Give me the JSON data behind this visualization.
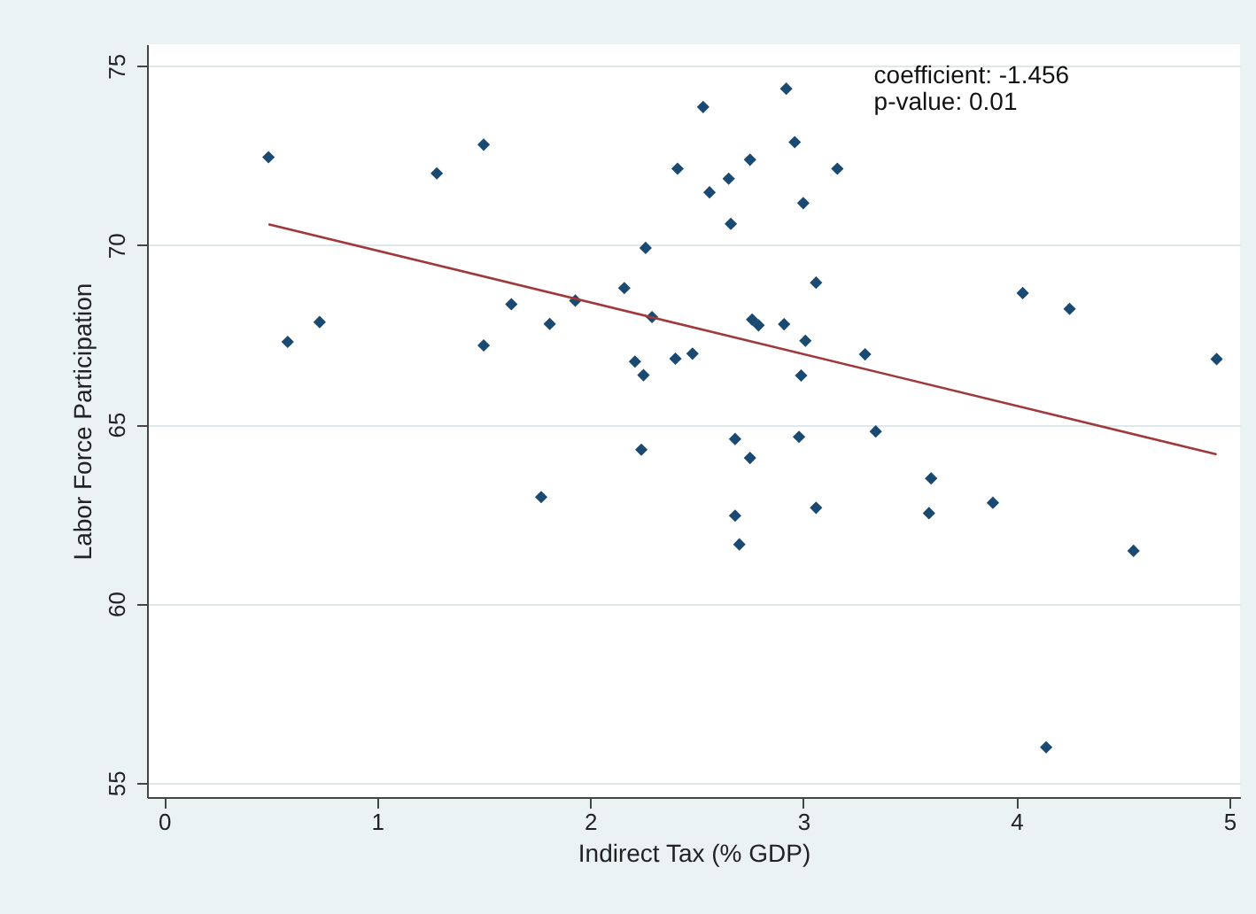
{
  "chart_data": {
    "type": "scatter",
    "xlabel": "Indirect Tax (% GDP)",
    "ylabel": "Labor Force Participation",
    "xlim": [
      -0.08,
      5.05
    ],
    "ylim": [
      54.6,
      75.6
    ],
    "xticks": [
      0,
      1,
      2,
      3,
      4,
      5
    ],
    "yticks": [
      55,
      60,
      65,
      70,
      75
    ],
    "grid": "y",
    "marker": "diamond",
    "annotations": [
      "coefficient: -1.456",
      " p-value: 0.01"
    ],
    "series": [
      {
        "color": "#1a4a72",
        "x": [
          0.49,
          0.58,
          0.73,
          1.28,
          1.5,
          1.5,
          1.63,
          1.77,
          1.81,
          1.93,
          2.16,
          2.21,
          2.25,
          2.26,
          2.29,
          2.24,
          2.4,
          2.41,
          2.48,
          2.53,
          2.56,
          2.65,
          2.66,
          2.68,
          2.68,
          2.7,
          2.75,
          2.75,
          2.76,
          2.79,
          2.91,
          2.92,
          2.96,
          3.0,
          3.06,
          3.01,
          2.99,
          2.98,
          3.06,
          3.16,
          3.29,
          3.34,
          3.6,
          3.59,
          3.89,
          4.03,
          4.25,
          4.14,
          4.55,
          4.94
        ],
        "values": [
          72.45,
          67.3,
          67.85,
          72.0,
          72.8,
          67.2,
          68.35,
          62.97,
          67.8,
          68.45,
          68.8,
          66.75,
          66.37,
          69.92,
          67.99,
          64.29,
          66.83,
          72.13,
          66.97,
          73.85,
          71.47,
          71.85,
          70.59,
          64.59,
          62.45,
          61.65,
          72.38,
          64.06,
          67.92,
          67.76,
          67.79,
          74.36,
          72.87,
          71.17,
          68.95,
          67.33,
          66.36,
          64.65,
          62.67,
          72.13,
          66.95,
          64.8,
          63.49,
          62.52,
          62.81,
          68.66,
          68.22,
          55.99,
          61.47,
          66.82
        ]
      },
      {
        "type": "line",
        "marker": "none",
        "color": "#a0393b",
        "x": [
          0.49,
          4.94
        ],
        "values": [
          70.58,
          64.16
        ]
      }
    ]
  }
}
